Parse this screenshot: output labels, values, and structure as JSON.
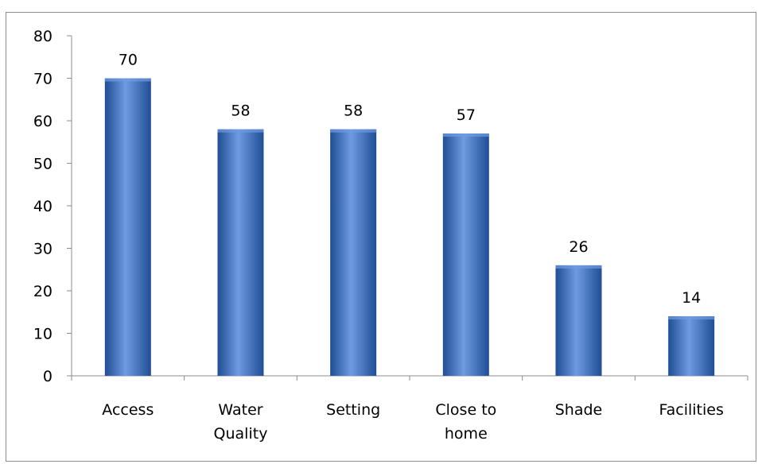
{
  "chart_data": {
    "type": "bar",
    "categories": [
      "Access",
      "Water Quality",
      "Setting",
      "Close to home",
      "Shade",
      "Facilities"
    ],
    "category_lines": [
      [
        "Access"
      ],
      [
        "Water",
        "Quality"
      ],
      [
        "Setting"
      ],
      [
        "Close to",
        "home"
      ],
      [
        "Shade"
      ],
      [
        "Facilities"
      ]
    ],
    "values": [
      70,
      58,
      58,
      57,
      26,
      14
    ],
    "data_labels": [
      "70",
      "58",
      "58",
      "57",
      "26",
      "14"
    ],
    "ylim": [
      0,
      80
    ],
    "yticks": [
      0,
      10,
      20,
      30,
      40,
      50,
      60,
      70,
      80
    ],
    "title": "",
    "xlabel": "",
    "ylabel": "",
    "grid": false,
    "legend": "none",
    "bar_color": "#3a6fc0",
    "bar_color_dark": "#1f4e96",
    "bar_color_light": "#6f9be0"
  }
}
